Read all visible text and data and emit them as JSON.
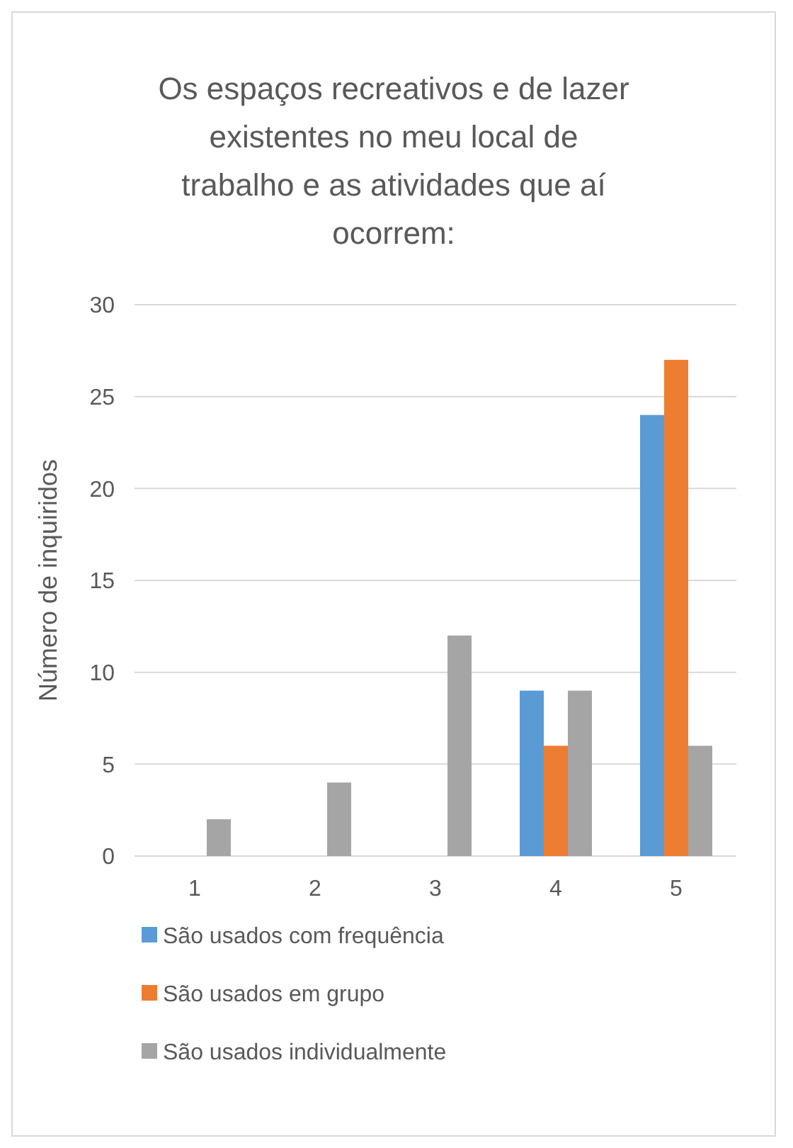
{
  "chart_data": {
    "type": "bar",
    "title": "Os espaços recreativos e de lazer existentes no meu local de trabalho e as atividades que aí ocorrem:",
    "ylabel": "Número de inquiridos",
    "categories": [
      "1",
      "2",
      "3",
      "4",
      "5"
    ],
    "series": [
      {
        "name": "São usados com frequência",
        "color": "#5b9bd5",
        "values": [
          0,
          0,
          0,
          9,
          24
        ]
      },
      {
        "name": "São usados em grupo",
        "color": "#ed7d31",
        "values": [
          0,
          0,
          0,
          6,
          27
        ]
      },
      {
        "name": "São usados individualmente",
        "color": "#a5a5a5",
        "values": [
          2,
          4,
          12,
          9,
          6
        ]
      }
    ],
    "ylim": [
      0,
      30
    ],
    "yticks": [
      0,
      5,
      10,
      15,
      20,
      25,
      30
    ],
    "grid": "y",
    "legend": "bottom"
  }
}
